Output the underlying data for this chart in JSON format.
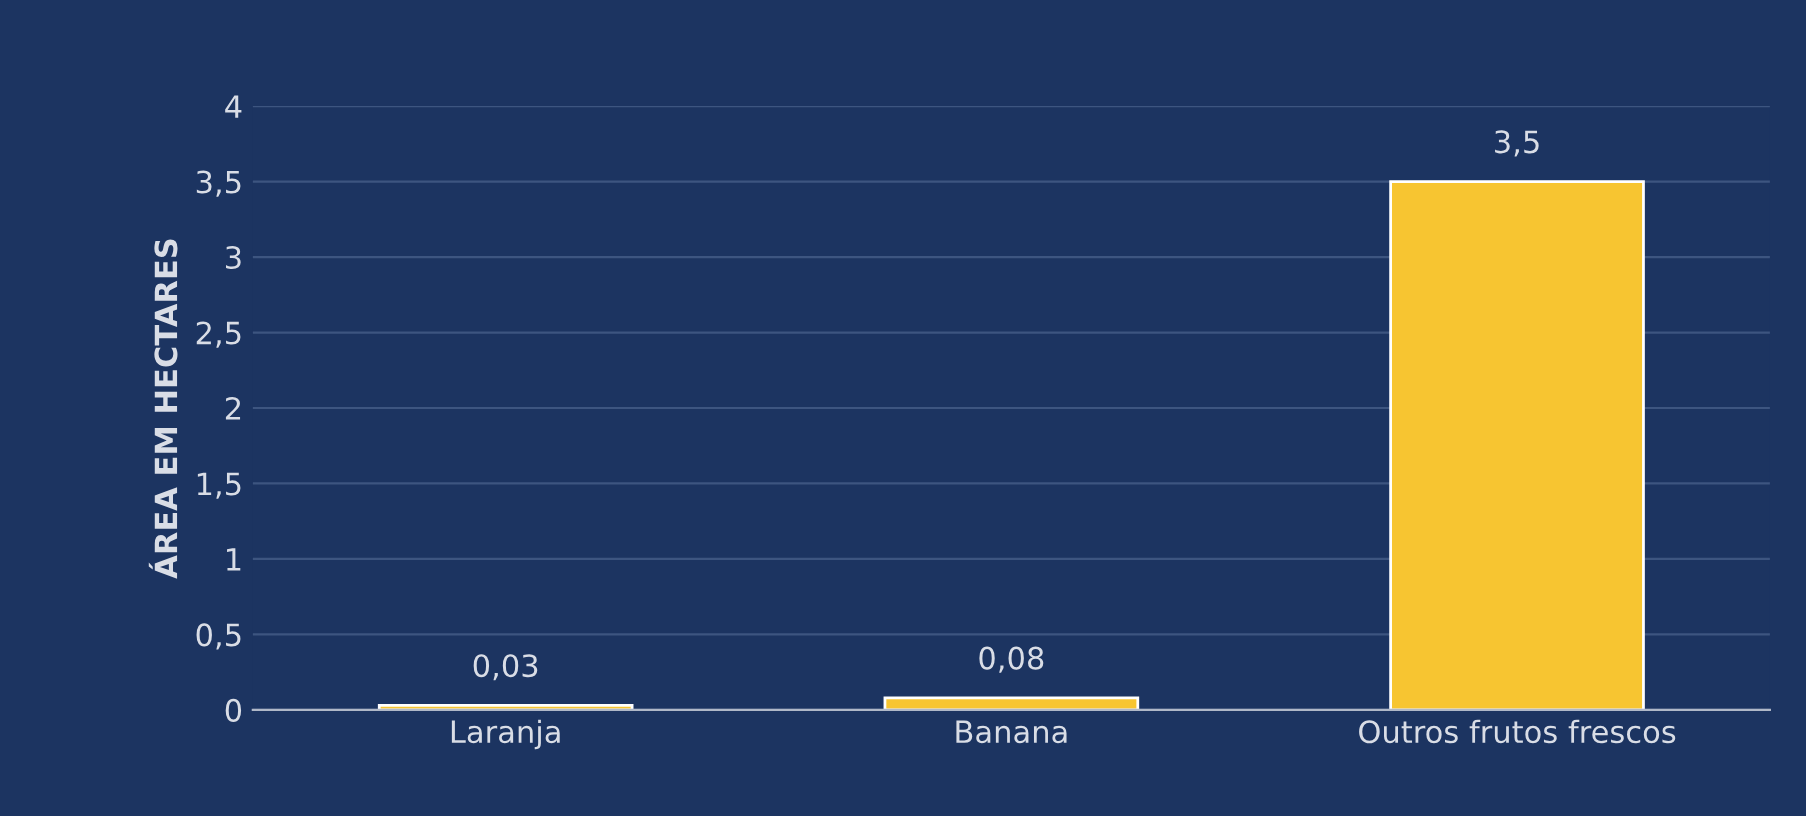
{
  "chart_data": {
    "type": "bar",
    "ylabel": "ÁREA EM HECTARES",
    "categories": [
      "Laranja",
      "Banana",
      "Outros frutos frescos"
    ],
    "values": [
      0.03,
      0.08,
      3.5
    ],
    "value_labels": [
      "0,03",
      "0,08",
      "3,5"
    ],
    "color": "#f7c531",
    "ylim": [
      0,
      4
    ],
    "yticks": [
      0,
      {
        "value": 0.5,
        "label": "0,5"
      },
      1,
      {
        "value": 1.5,
        "label": "1,5"
      },
      2,
      {
        "value": 2.5,
        "label": "2,5"
      },
      3,
      {
        "value": 3.5,
        "label": "3,5"
      },
      4
    ],
    "grid": "y",
    "legend": false
  }
}
